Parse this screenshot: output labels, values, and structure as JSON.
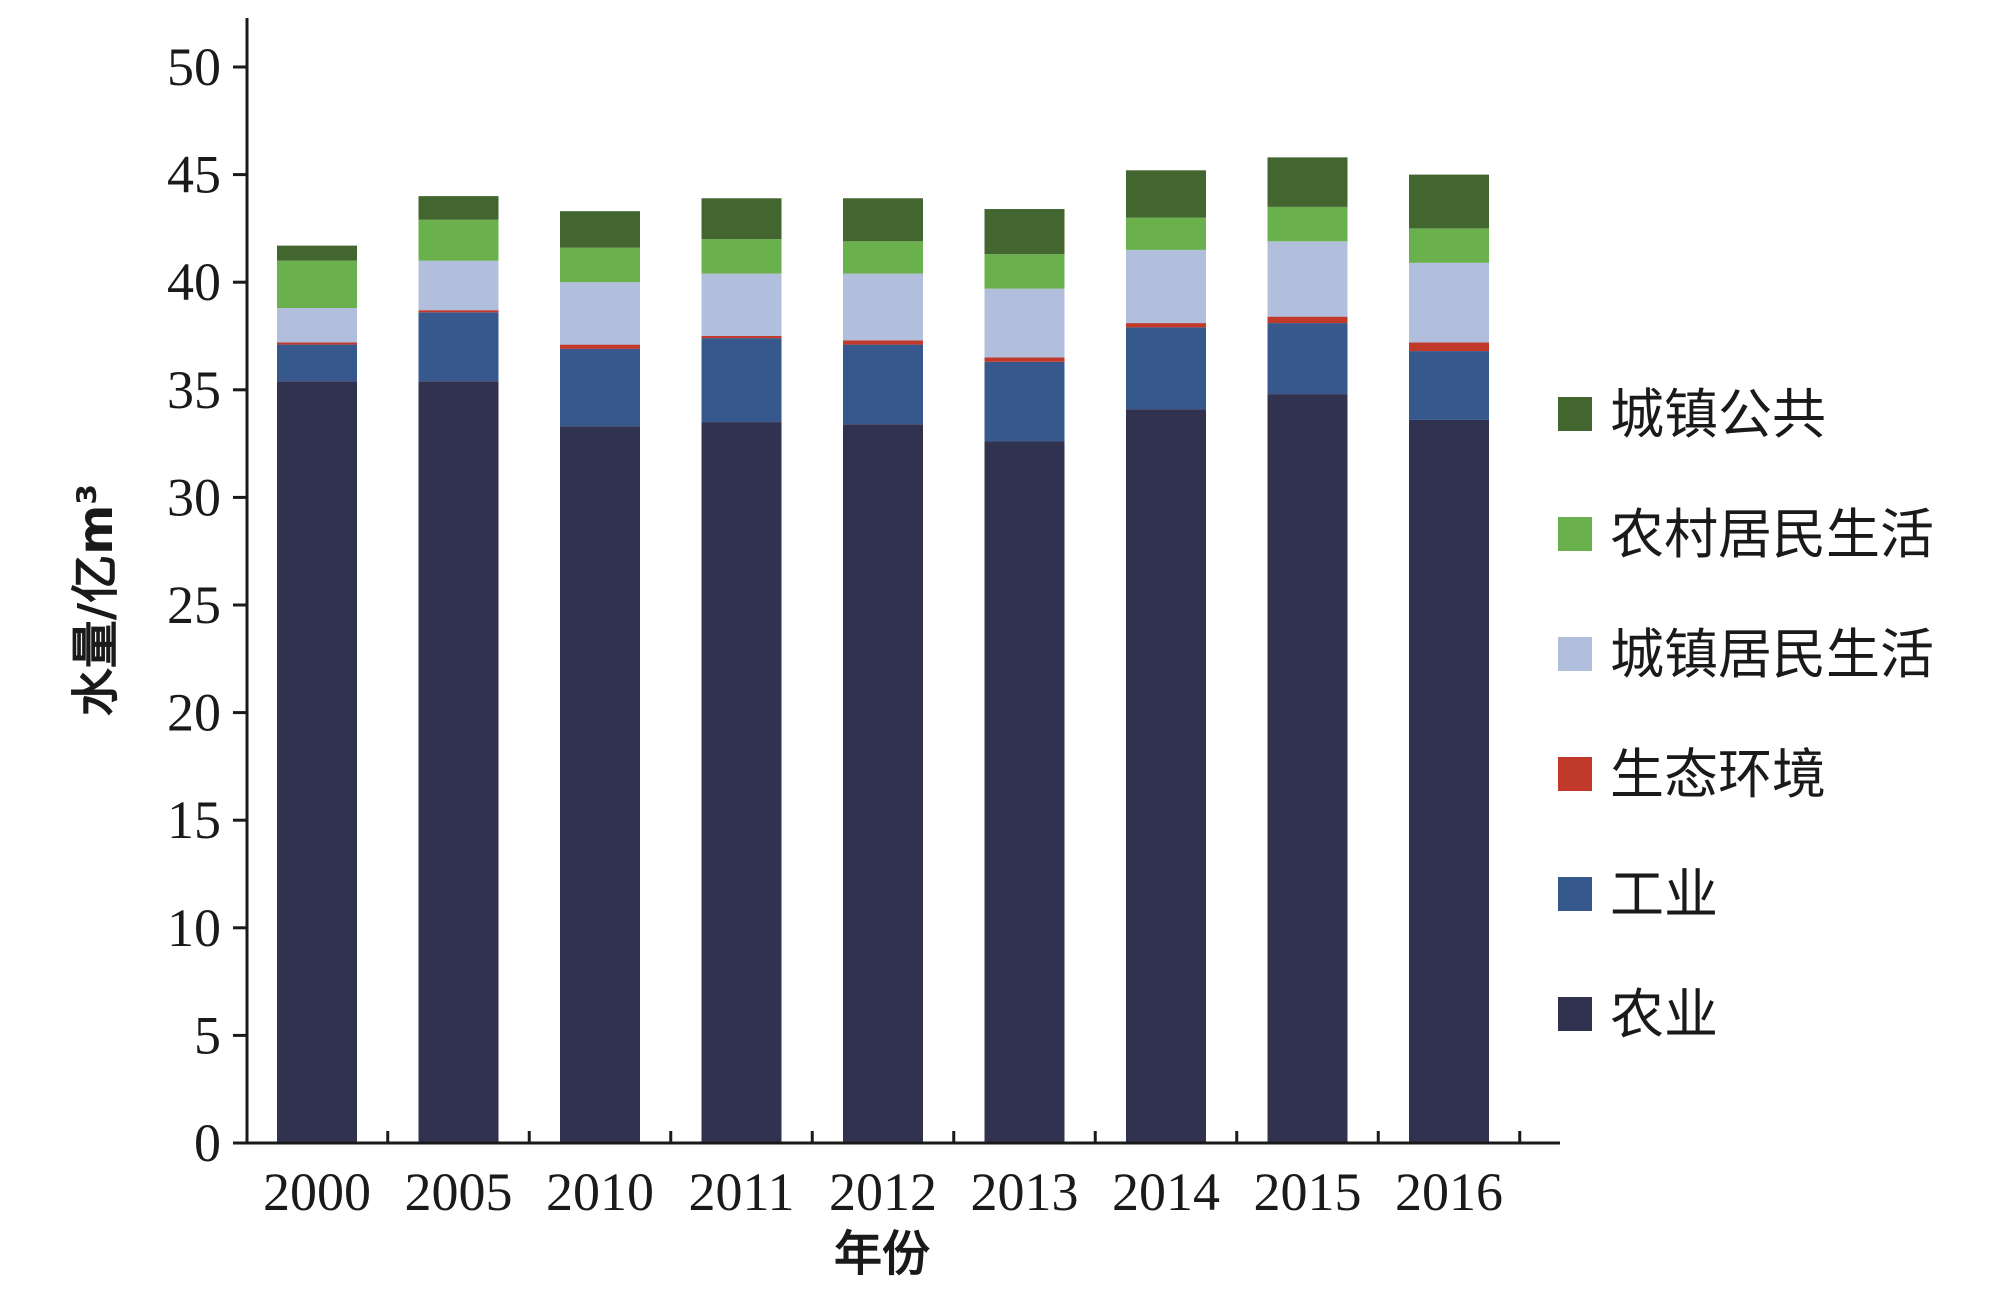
{
  "chart_data": {
    "type": "bar",
    "stacked": true,
    "xlabel": "年份",
    "ylabel": "水量/亿m³",
    "ylim": [
      0,
      50
    ],
    "yticks": [
      0,
      5,
      10,
      15,
      20,
      25,
      30,
      35,
      40,
      45,
      50
    ],
    "categories": [
      "2000",
      "2005",
      "2010",
      "2011",
      "2012",
      "2013",
      "2014",
      "2015",
      "2016"
    ],
    "legend_position": "right",
    "series": [
      {
        "name": "农业",
        "color": "#31324f",
        "values": [
          35.4,
          35.4,
          33.3,
          33.5,
          33.4,
          32.6,
          34.1,
          34.8,
          33.6
        ]
      },
      {
        "name": "工业",
        "color": "#37588c",
        "values": [
          1.7,
          3.2,
          3.6,
          3.9,
          3.7,
          3.7,
          3.8,
          3.3,
          3.2
        ]
      },
      {
        "name": "生态环境",
        "color": "#c0392b",
        "values": [
          0.1,
          0.1,
          0.2,
          0.1,
          0.2,
          0.2,
          0.2,
          0.3,
          0.4
        ]
      },
      {
        "name": "城镇居民生活",
        "color": "#b1bfdd",
        "values": [
          1.6,
          2.3,
          2.9,
          2.9,
          3.1,
          3.2,
          3.4,
          3.5,
          3.7
        ]
      },
      {
        "name": "农村居民生活",
        "color": "#6ab04c",
        "values": [
          2.2,
          1.9,
          1.6,
          1.6,
          1.5,
          1.6,
          1.5,
          1.6,
          1.6
        ]
      },
      {
        "name": "城镇公共",
        "color": "#436630",
        "values": [
          0.7,
          1.1,
          1.7,
          1.9,
          2.0,
          2.1,
          2.2,
          2.3,
          2.5
        ]
      }
    ]
  }
}
